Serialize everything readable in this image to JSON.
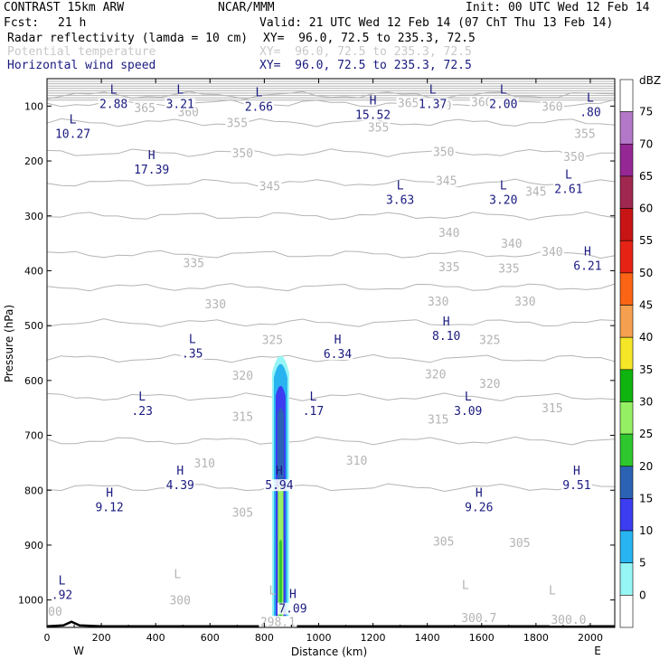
{
  "header": {
    "title": "CONTRAST 15km ARW",
    "source": "NCAR/MMM",
    "init": "Init: 00 UTC Wed 12 Feb 14",
    "fcst_label": "Fcst:",
    "fcst_value": "21 h",
    "valid": "Valid: 21 UTC Wed 12 Feb 14 (07 ChT Thu 13 Feb 14)"
  },
  "fields": [
    {
      "name": "Radar reflectivity (lamda = 10 cm)",
      "xy": "XY=  96.0, 72.5 to 235.3, 72.5",
      "color": "#000000"
    },
    {
      "name": "Potential temperature",
      "xy": "XY=  96.0, 72.5 to 235.3, 72.5",
      "color": "#c8c8c8"
    },
    {
      "name": "Horizontal wind speed",
      "xy": "XY=  96.0, 72.5 to 235.3, 72.5",
      "color": "#1a1a80"
    }
  ],
  "chart_data": {
    "type": "cross-section",
    "xlabel": "Distance (km)",
    "ylabel": "Pressure (hPa)",
    "xlim": [
      0,
      2090
    ],
    "ylim": [
      1050,
      50
    ],
    "x_ticks": [
      0,
      200,
      400,
      600,
      800,
      1000,
      1200,
      1400,
      1600,
      1800,
      2000
    ],
    "y_ticks": [
      100,
      200,
      300,
      400,
      500,
      600,
      700,
      800,
      900,
      1000
    ],
    "direction_left": "W",
    "direction_right": "E",
    "colorbar": {
      "unit": "dBZ",
      "levels": [
        "0",
        "5",
        "10",
        "15",
        "20",
        "25",
        "30",
        "35",
        "40",
        "45",
        "50",
        "55",
        "60",
        "65",
        "70",
        "75"
      ],
      "colors": [
        "#ffffff",
        "#96f5f5",
        "#28b4f0",
        "#3c3cf0",
        "#2c62b4",
        "#2ec82e",
        "#96f064",
        "#0fb40f",
        "#f5e628",
        "#f5a050",
        "#fa6414",
        "#e62314",
        "#c81414",
        "#a02850",
        "#962896",
        "#b478c8",
        "#ffffff"
      ]
    },
    "reflectivity_column": {
      "x_km": 860,
      "top_hPa": 560,
      "max_dBZ": 30
    },
    "theta_contours": [
      {
        "value": 365,
        "p": 95
      },
      {
        "value": 360,
        "p": 80
      },
      {
        "value": 355,
        "p": 130
      },
      {
        "value": 350,
        "p": 185
      },
      {
        "value": 345,
        "p": 240
      },
      {
        "value": 340,
        "p": 300
      },
      {
        "value": 335,
        "p": 370
      },
      {
        "value": 330,
        "p": 430
      },
      {
        "value": 325,
        "p": 495
      },
      {
        "value": 320,
        "p": 560
      },
      {
        "value": 315,
        "p": 630
      },
      {
        "value": 310,
        "p": 710
      },
      {
        "value": 305,
        "p": 795
      }
    ],
    "theta_labels": [
      {
        "text": "365",
        "x": 360,
        "p": 103
      },
      {
        "text": "360",
        "x": 520,
        "p": 110
      },
      {
        "text": "365",
        "x": 1330,
        "p": 94
      },
      {
        "text": "360",
        "x": 1450,
        "p": 99
      },
      {
        "text": "360",
        "x": 1600,
        "p": 92
      },
      {
        "text": "360",
        "x": 1860,
        "p": 100
      },
      {
        "text": "355",
        "x": 700,
        "p": 130
      },
      {
        "text": "355",
        "x": 1220,
        "p": 138
      },
      {
        "text": "355",
        "x": 1980,
        "p": 150
      },
      {
        "text": "350",
        "x": 720,
        "p": 185
      },
      {
        "text": "350",
        "x": 1460,
        "p": 183
      },
      {
        "text": "350",
        "x": 1940,
        "p": 192
      },
      {
        "text": "345",
        "x": 820,
        "p": 245
      },
      {
        "text": "345",
        "x": 1470,
        "p": 235
      },
      {
        "text": "345",
        "x": 1800,
        "p": 255
      },
      {
        "text": "340",
        "x": 1480,
        "p": 330
      },
      {
        "text": "340",
        "x": 1710,
        "p": 350
      },
      {
        "text": "340",
        "x": 1860,
        "p": 365
      },
      {
        "text": "335",
        "x": 540,
        "p": 385
      },
      {
        "text": "335",
        "x": 1480,
        "p": 393
      },
      {
        "text": "335",
        "x": 1700,
        "p": 395
      },
      {
        "text": "330",
        "x": 620,
        "p": 460
      },
      {
        "text": "330",
        "x": 1440,
        "p": 455
      },
      {
        "text": "330",
        "x": 1760,
        "p": 455
      },
      {
        "text": "325",
        "x": 830,
        "p": 525
      },
      {
        "text": "325",
        "x": 1630,
        "p": 525
      },
      {
        "text": "320",
        "x": 720,
        "p": 590
      },
      {
        "text": "320",
        "x": 1430,
        "p": 588
      },
      {
        "text": "320",
        "x": 1630,
        "p": 605
      },
      {
        "text": "315",
        "x": 720,
        "p": 665
      },
      {
        "text": "315",
        "x": 1440,
        "p": 670
      },
      {
        "text": "315",
        "x": 1860,
        "p": 650
      },
      {
        "text": "310",
        "x": 580,
        "p": 750
      },
      {
        "text": "310",
        "x": 1140,
        "p": 745
      },
      {
        "text": "305",
        "x": 720,
        "p": 840
      },
      {
        "text": "305",
        "x": 1460,
        "p": 893
      },
      {
        "text": "305",
        "x": 1740,
        "p": 895
      },
      {
        "text": "300",
        "x": 490,
        "p": 1000
      },
      {
        "text": "298.1",
        "x": 850,
        "p": 1039
      },
      {
        "text": "300.7",
        "x": 1590,
        "p": 1032
      },
      {
        "text": "300.0",
        "x": 1920,
        "p": 1035
      },
      {
        "text": "00",
        "x": 30,
        "p": 1020
      }
    ],
    "theta_extremes": [
      {
        "letter": "L",
        "x": 480,
        "p": 960
      },
      {
        "letter": "L",
        "x": 830,
        "p": 990
      },
      {
        "letter": "L",
        "x": 1540,
        "p": 980
      },
      {
        "letter": "L",
        "x": 1860,
        "p": 990
      }
    ],
    "wind_extremes": [
      {
        "letter": "L",
        "value": "2.88",
        "x": 245,
        "p": 90
      },
      {
        "letter": "L",
        "value": "3.21",
        "x": 490,
        "p": 90
      },
      {
        "letter": "L",
        "value": "2.66",
        "x": 780,
        "p": 95
      },
      {
        "letter": "H",
        "value": "15.52",
        "x": 1200,
        "p": 110
      },
      {
        "letter": "L",
        "value": "1.37",
        "x": 1420,
        "p": 90
      },
      {
        "letter": "L",
        "value": "2.00",
        "x": 1680,
        "p": 90
      },
      {
        "letter": "L",
        "value": ".80",
        "x": 2000,
        "p": 105
      },
      {
        "letter": "L",
        "value": "10.27",
        "x": 95,
        "p": 145
      },
      {
        "letter": "H",
        "value": "17.39",
        "x": 385,
        "p": 210
      },
      {
        "letter": "L",
        "value": "3.63",
        "x": 1300,
        "p": 265
      },
      {
        "letter": "L",
        "value": "3.20",
        "x": 1680,
        "p": 265
      },
      {
        "letter": "L",
        "value": "2.61",
        "x": 1920,
        "p": 245
      },
      {
        "letter": "H",
        "value": "6.21",
        "x": 1990,
        "p": 385
      },
      {
        "letter": "H",
        "value": "8.10",
        "x": 1470,
        "p": 513
      },
      {
        "letter": "L",
        "value": ".35",
        "x": 535,
        "p": 545
      },
      {
        "letter": "H",
        "value": "6.34",
        "x": 1070,
        "p": 546
      },
      {
        "letter": "L",
        "value": ".23",
        "x": 350,
        "p": 650
      },
      {
        "letter": "L",
        "value": ".17",
        "x": 980,
        "p": 650
      },
      {
        "letter": "L",
        "value": "3.09",
        "x": 1550,
        "p": 650
      },
      {
        "letter": "H",
        "value": "4.39",
        "x": 490,
        "p": 785
      },
      {
        "letter": "H",
        "value": "5.94",
        "x": 855,
        "p": 785
      },
      {
        "letter": "H",
        "value": "9.51",
        "x": 1950,
        "p": 785
      },
      {
        "letter": "H",
        "value": "9.12",
        "x": 230,
        "p": 825
      },
      {
        "letter": "H",
        "value": "9.26",
        "x": 1590,
        "p": 825
      },
      {
        "letter": "L",
        "value": ".92",
        "x": 55,
        "p": 985
      },
      {
        "letter": "H",
        "value": "7.09",
        "x": 905,
        "p": 1010
      }
    ]
  }
}
